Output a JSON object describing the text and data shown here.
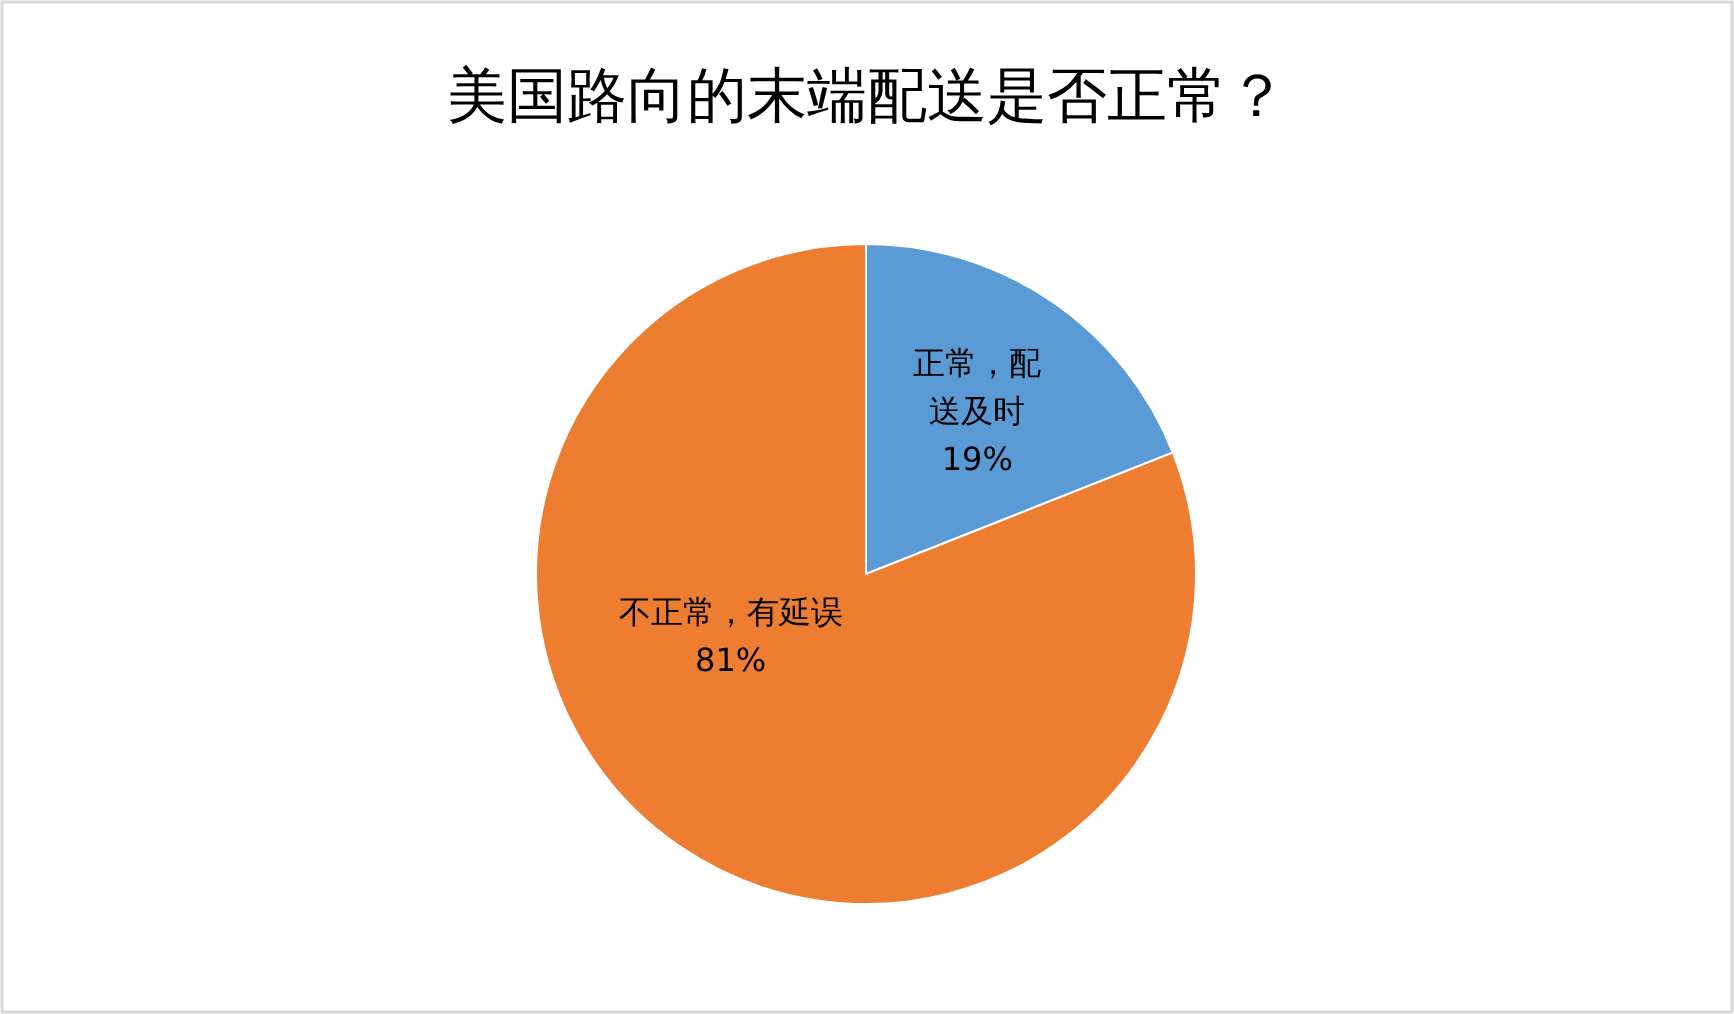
{
  "chart_data": {
    "type": "pie",
    "title": "美国路向的末端配送是否正常？",
    "categories": [
      "正常，配送及时",
      "不正常，有延误"
    ],
    "values": [
      19,
      81
    ],
    "colors": [
      "#5b9bd5",
      "#ed7d31"
    ],
    "value_labels": [
      "19%",
      "81%"
    ]
  }
}
